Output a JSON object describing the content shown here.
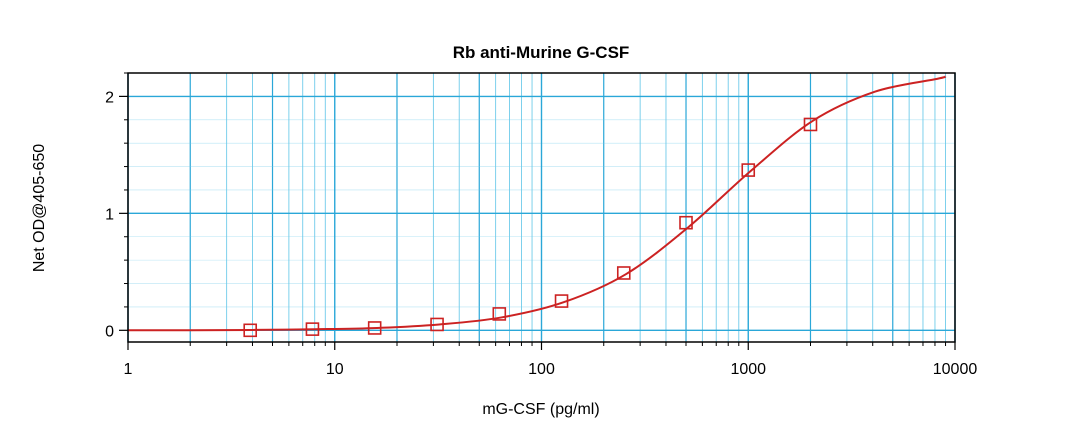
{
  "chart_data": {
    "type": "scatter",
    "title": "Rb anti-Murine G-CSF",
    "xlabel": "mG-CSF (pg/ml)",
    "ylabel": "Net OD@405-650",
    "x_scale": "log",
    "xlim": [
      1,
      10000
    ],
    "ylim": [
      -0.1,
      2.2
    ],
    "x_ticks": [
      1,
      10,
      100,
      1000,
      10000
    ],
    "x_tick_labels": [
      "1",
      "10",
      "100",
      "1000",
      "10000"
    ],
    "y_ticks": [
      0,
      1,
      2
    ],
    "y_tick_labels": [
      "0",
      "1",
      "2"
    ],
    "grid": true,
    "legend": "none",
    "colors": {
      "grid_major": "#2aa7d8",
      "grid_minor": "#6fcbea",
      "series": "#cc2222"
    },
    "points": {
      "marker": "square",
      "x": [
        3.9,
        7.8,
        15.6,
        31.25,
        62.5,
        125,
        250,
        500,
        1000,
        2000
      ],
      "y": [
        0.0,
        0.01,
        0.02,
        0.05,
        0.14,
        0.25,
        0.49,
        0.92,
        1.37,
        1.76
      ]
    },
    "fit_curve": {
      "x": [
        1,
        2,
        4,
        8,
        16,
        32,
        64,
        128,
        256,
        512,
        1024,
        2048,
        4096,
        8192,
        9000
      ],
      "y": [
        0.0,
        0.001,
        0.003,
        0.009,
        0.02,
        0.05,
        0.11,
        0.24,
        0.48,
        0.88,
        1.36,
        1.79,
        2.04,
        2.15,
        2.17
      ]
    }
  }
}
